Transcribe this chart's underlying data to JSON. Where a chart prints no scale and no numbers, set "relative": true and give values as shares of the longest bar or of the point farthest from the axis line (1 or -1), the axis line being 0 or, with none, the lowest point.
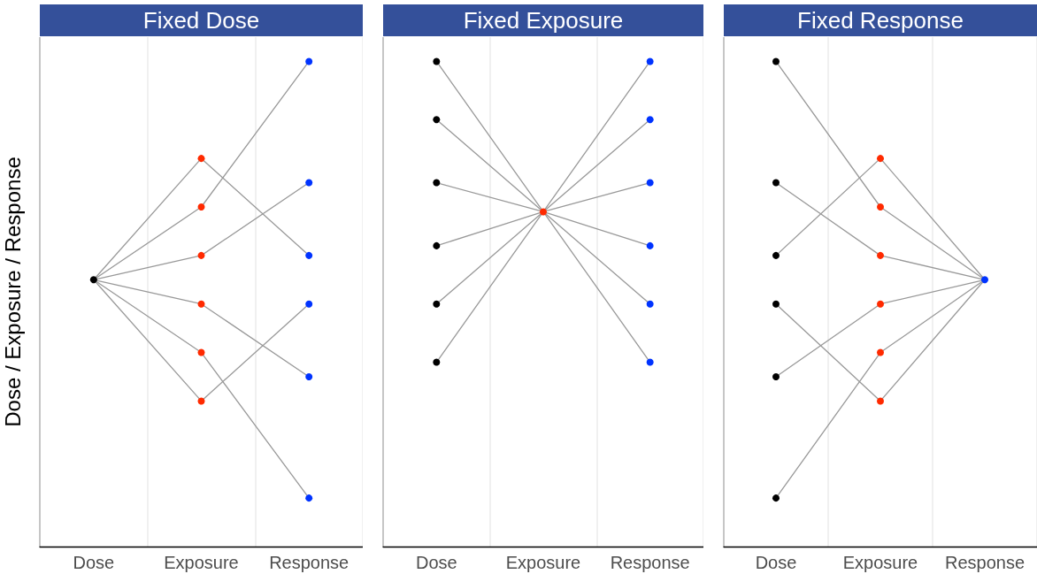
{
  "chart_data": [
    {
      "type": "line",
      "title": "Fixed Dose",
      "ylabel": "Dose / Exposure / Response",
      "categories": [
        "Dose",
        "Exposure",
        "Response"
      ],
      "relative": true,
      "grid": "x",
      "tick_labels": "x",
      "marker": "none",
      "line_style": "solid",
      "series": [
        {
          "color": "#999999",
          "values": [
            0.55,
            0.8,
            0.6
          ]
        },
        {
          "color": "#999999",
          "values": [
            0.55,
            0.7,
            1.0
          ]
        },
        {
          "color": "#999999",
          "values": [
            0.55,
            0.6,
            0.75
          ]
        },
        {
          "color": "#999999",
          "values": [
            0.55,
            0.5,
            0.35
          ]
        },
        {
          "color": "#999999",
          "values": [
            0.55,
            0.4,
            0.1
          ]
        },
        {
          "color": "#999999",
          "values": [
            0.55,
            0.3,
            0.5
          ]
        },
        {
          "type": "scatter",
          "marker": "circle",
          "color": "#000000",
          "x": [
            "Dose"
          ],
          "values": [
            0.55
          ]
        },
        {
          "type": "scatter",
          "marker": "circle",
          "color": "#ff2a00",
          "x": [
            "Exposure",
            "Exposure",
            "Exposure",
            "Exposure",
            "Exposure",
            "Exposure"
          ],
          "values": [
            0.8,
            0.7,
            0.6,
            0.5,
            0.4,
            0.3
          ]
        },
        {
          "type": "scatter",
          "marker": "circle",
          "color": "#0033ff",
          "x": [
            "Response",
            "Response",
            "Response",
            "Response",
            "Response",
            "Response"
          ],
          "values": [
            0.6,
            1.0,
            0.75,
            0.35,
            0.1,
            0.5
          ]
        }
      ]
    },
    {
      "type": "line",
      "title": "Fixed Exposure",
      "categories": [
        "Dose",
        "Exposure",
        "Response"
      ],
      "relative": true,
      "grid": "x",
      "tick_labels": "x",
      "marker": "none",
      "line_style": "solid",
      "series": [
        {
          "color": "#999999",
          "values": [
            1.0,
            0.69,
            0.38
          ]
        },
        {
          "color": "#999999",
          "values": [
            0.88,
            0.69,
            0.5
          ]
        },
        {
          "color": "#999999",
          "values": [
            0.75,
            0.69,
            0.62
          ]
        },
        {
          "color": "#999999",
          "values": [
            0.62,
            0.69,
            0.75
          ]
        },
        {
          "color": "#999999",
          "values": [
            0.5,
            0.69,
            0.88
          ]
        },
        {
          "color": "#999999",
          "values": [
            0.38,
            0.69,
            1.0
          ]
        },
        {
          "type": "scatter",
          "marker": "circle",
          "color": "#000000",
          "x": [
            "Dose",
            "Dose",
            "Dose",
            "Dose",
            "Dose",
            "Dose"
          ],
          "values": [
            1.0,
            0.88,
            0.75,
            0.62,
            0.5,
            0.38
          ]
        },
        {
          "type": "scatter",
          "marker": "circle",
          "color": "#ff2a00",
          "x": [
            "Exposure"
          ],
          "values": [
            0.69
          ]
        },
        {
          "type": "scatter",
          "marker": "circle",
          "color": "#0033ff",
          "x": [
            "Response",
            "Response",
            "Response",
            "Response",
            "Response",
            "Response"
          ],
          "values": [
            0.38,
            0.5,
            0.62,
            0.75,
            0.88,
            1.0
          ]
        }
      ]
    },
    {
      "type": "line",
      "title": "Fixed Response",
      "categories": [
        "Dose",
        "Exposure",
        "Response"
      ],
      "relative": true,
      "grid": "x",
      "tick_labels": "x",
      "marker": "none",
      "line_style": "solid",
      "series": [
        {
          "color": "#999999",
          "values": [
            1.0,
            0.7,
            0.55
          ]
        },
        {
          "color": "#999999",
          "values": [
            0.75,
            0.6,
            0.55
          ]
        },
        {
          "color": "#999999",
          "values": [
            0.6,
            0.8,
            0.55
          ]
        },
        {
          "color": "#999999",
          "values": [
            0.5,
            0.3,
            0.55
          ]
        },
        {
          "color": "#999999",
          "values": [
            0.35,
            0.5,
            0.55
          ]
        },
        {
          "color": "#999999",
          "values": [
            0.1,
            0.4,
            0.55
          ]
        },
        {
          "type": "scatter",
          "marker": "circle",
          "color": "#000000",
          "x": [
            "Dose",
            "Dose",
            "Dose",
            "Dose",
            "Dose",
            "Dose"
          ],
          "values": [
            1.0,
            0.75,
            0.6,
            0.5,
            0.35,
            0.1
          ]
        },
        {
          "type": "scatter",
          "marker": "circle",
          "color": "#ff2a00",
          "x": [
            "Exposure",
            "Exposure",
            "Exposure",
            "Exposure",
            "Exposure",
            "Exposure"
          ],
          "values": [
            0.7,
            0.6,
            0.8,
            0.3,
            0.5,
            0.4
          ]
        },
        {
          "type": "scatter",
          "marker": "circle",
          "color": "#0033ff",
          "x": [
            "Response"
          ],
          "values": [
            0.55
          ]
        }
      ]
    }
  ]
}
